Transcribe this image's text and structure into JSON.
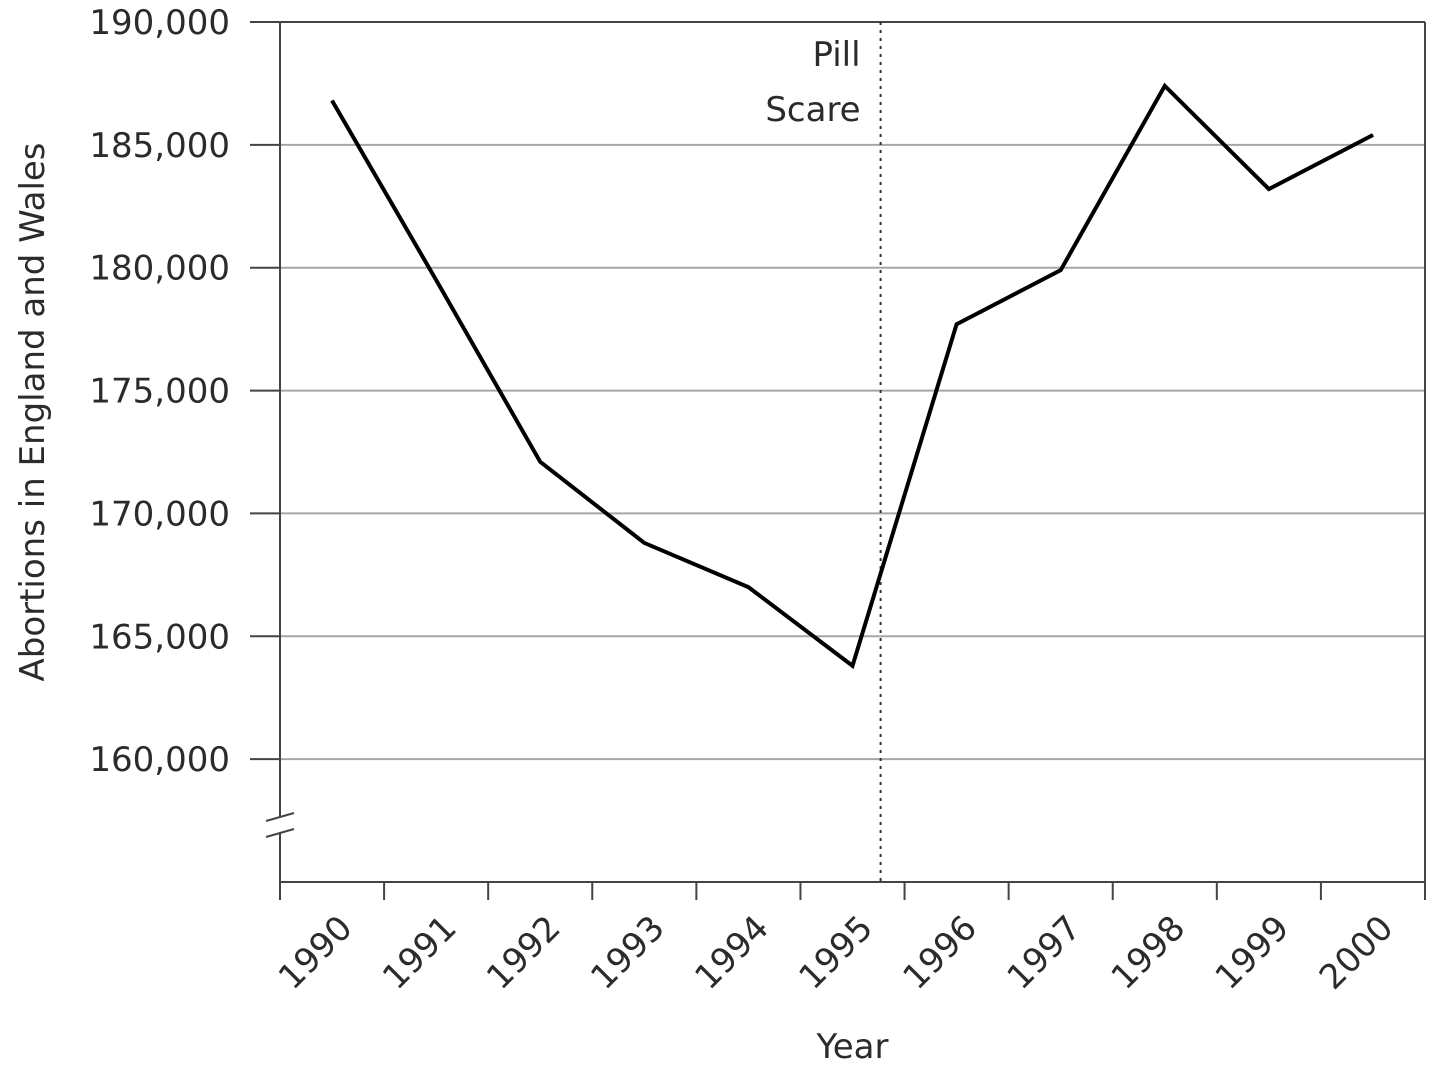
{
  "chart_data": {
    "type": "line",
    "title": "",
    "xlabel": "Year",
    "ylabel": "Abortions in England and Wales",
    "categories": [
      "1990",
      "1991",
      "1992",
      "1993",
      "1994",
      "1995",
      "1996",
      "1997",
      "1998",
      "1999",
      "2000"
    ],
    "series": [
      {
        "values": [
          186800,
          179500,
          172100,
          168800,
          167000,
          163800,
          177700,
          179900,
          187400,
          183200,
          185400
        ],
        "color": "#000000"
      }
    ],
    "y_ticks": [
      160000,
      165000,
      170000,
      175000,
      180000,
      185000,
      190000
    ],
    "y_tick_labels": [
      "160,000",
      "165,000",
      "170,000",
      "175,000",
      "180,000",
      "185,000",
      "190,000"
    ],
    "ylim": [
      155000,
      190000
    ],
    "y_axis_break": true,
    "grid": "horizontal",
    "grid_color": "#a6a6a6",
    "annotations": [
      {
        "lines": [
          "Pill",
          "Scare"
        ],
        "x_position": "1995.75",
        "style": "dotted-vertical-line"
      }
    ]
  }
}
